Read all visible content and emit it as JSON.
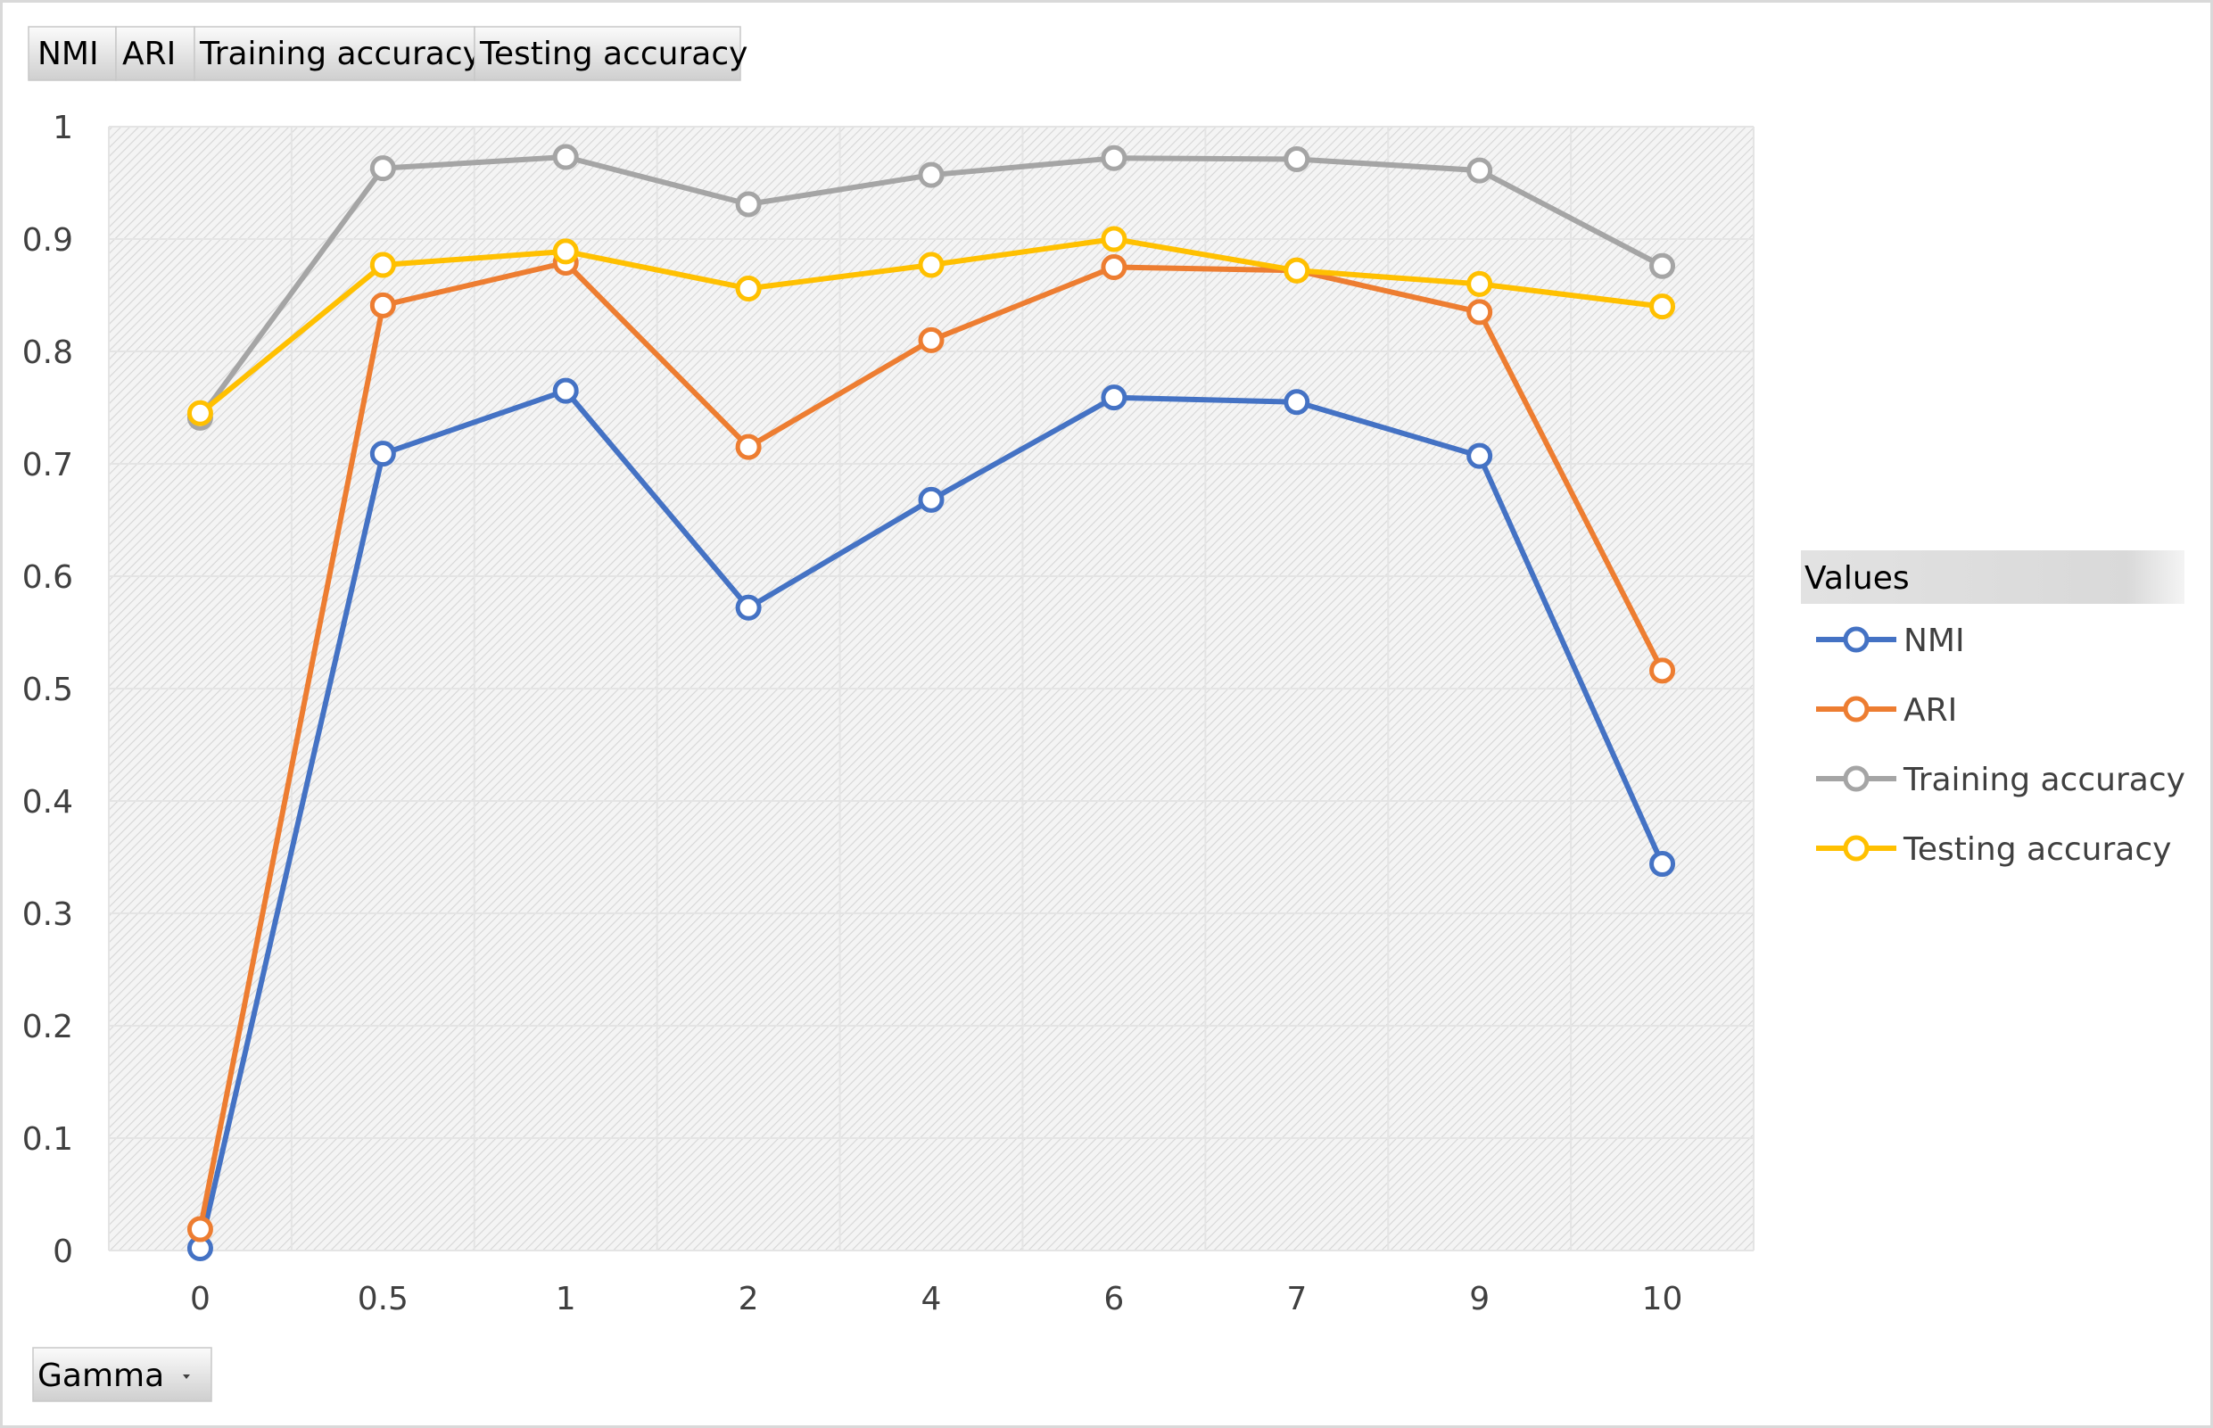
{
  "field_buttons": {
    "values": [
      "NMI",
      "ARI",
      "Training accuracy",
      "Testing accuracy"
    ],
    "axis_field": "Gamma",
    "axis_field_dropdown_icon": "chevron-down-icon"
  },
  "legend": {
    "title": "Values",
    "placement": "right"
  },
  "chart_data": {
    "type": "line",
    "categories": [
      "0",
      "0.5",
      "1",
      "2",
      "4",
      "6",
      "7",
      "9",
      "10"
    ],
    "ylim": [
      0,
      1
    ],
    "yticks": [
      "0",
      "0.1",
      "0.2",
      "0.3",
      "0.4",
      "0.5",
      "0.6",
      "0.7",
      "0.8",
      "0.9",
      "1"
    ],
    "grid": true,
    "marker": "hollow-circle",
    "series": [
      {
        "name": "NMI",
        "color": "#4472C4",
        "values": [
          0.002,
          0.709,
          0.765,
          0.572,
          0.668,
          0.759,
          0.755,
          0.707,
          0.344
        ]
      },
      {
        "name": "ARI",
        "color": "#ED7D31",
        "values": [
          0.019,
          0.841,
          0.879,
          0.715,
          0.81,
          0.875,
          0.872,
          0.835,
          0.516
        ]
      },
      {
        "name": "Training accuracy",
        "color": "#A5A5A5",
        "values": [
          0.741,
          0.963,
          0.973,
          0.931,
          0.957,
          0.972,
          0.971,
          0.961,
          0.876
        ]
      },
      {
        "name": "Testing accuracy",
        "color": "#FFC000",
        "values": [
          0.745,
          0.877,
          0.889,
          0.856,
          0.877,
          0.9,
          0.872,
          0.86,
          0.84
        ]
      }
    ]
  }
}
